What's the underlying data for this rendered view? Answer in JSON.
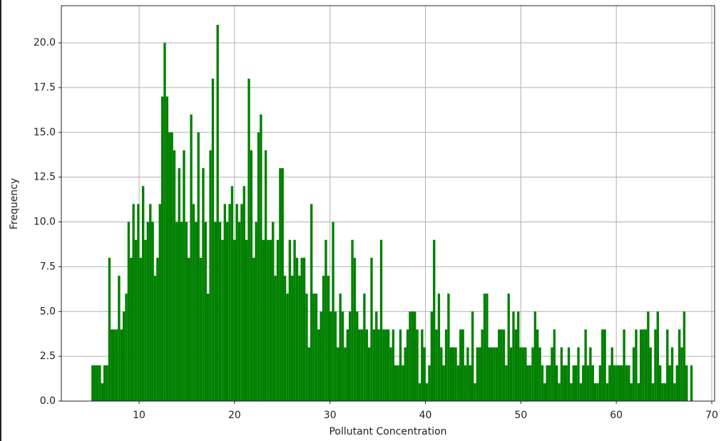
{
  "chart_data": {
    "type": "histogram",
    "x_label": "Pollutant Concentration",
    "y_label": "Frequency",
    "color": "#008000",
    "grid": true,
    "xlim": [
      1.85,
      70.3
    ],
    "ylim": [
      0,
      22.07
    ],
    "xticks": [
      10,
      20,
      30,
      40,
      50,
      60,
      70
    ],
    "yticks": [
      {
        "value": 0,
        "label": "0.0"
      },
      2.5,
      {
        "value": 5,
        "label": "5.0"
      },
      7.5,
      {
        "value": 10,
        "label": "10.0"
      },
      12.5,
      {
        "value": 15,
        "label": "15.0"
      },
      17.5,
      {
        "value": 20,
        "label": "20.0"
      }
    ],
    "bins": [
      5,
      5.252,
      5.504,
      5.756,
      6.008,
      6.26,
      6.512,
      6.764,
      7.016,
      7.268,
      7.52,
      7.772,
      8.024,
      8.276,
      8.528,
      8.78,
      9.032,
      9.284,
      9.536,
      9.788,
      10.04,
      10.292,
      10.544,
      10.796,
      11.048,
      11.3,
      11.552,
      11.804,
      12.056,
      12.308,
      12.56,
      12.812,
      13.064,
      13.316,
      13.568,
      13.82,
      14.072,
      14.324,
      14.576,
      14.828,
      15.08,
      15.332,
      15.584,
      15.836,
      16.088,
      16.34,
      16.592,
      16.844,
      17.096,
      17.348,
      17.6,
      17.852,
      18.104,
      18.356,
      18.608,
      18.86,
      19.112,
      19.364,
      19.616,
      19.868,
      20.12,
      20.372,
      20.624,
      20.876,
      21.128,
      21.38,
      21.632,
      21.884,
      22.136,
      22.388,
      22.64,
      22.892,
      23.144,
      23.396,
      23.648,
      23.9,
      24.152,
      24.404,
      24.656,
      24.908,
      25.16,
      25.412,
      25.664,
      25.916,
      26.168,
      26.42,
      26.672,
      26.924,
      27.176,
      27.428,
      27.68,
      27.932,
      28.184,
      28.436,
      28.688,
      28.94,
      29.192,
      29.444,
      29.696,
      29.948,
      30.2,
      30.452,
      30.704,
      30.956,
      31.208,
      31.46,
      31.712,
      31.964,
      32.216,
      32.468,
      32.72,
      32.972,
      33.224,
      33.476,
      33.728,
      33.98,
      34.232,
      34.484,
      34.736,
      34.988,
      35.24,
      35.492,
      35.744,
      35.996,
      36.248,
      36.5,
      36.752,
      37.004,
      37.256,
      37.508,
      37.76,
      38.012,
      38.264,
      38.516,
      38.768,
      39.02,
      39.272,
      39.524,
      39.776,
      40.028,
      40.28,
      40.532,
      40.784,
      41.036,
      41.288,
      41.54,
      41.792,
      42.044,
      42.296,
      42.548,
      42.8,
      43.052,
      43.304,
      43.556,
      43.808,
      44.06,
      44.312,
      44.564,
      44.816,
      45.068,
      45.32,
      45.572,
      45.824,
      46.076,
      46.328,
      46.58,
      46.832,
      47.084,
      47.336,
      47.588,
      47.84,
      48.092,
      48.344,
      48.596,
      48.848,
      49.1,
      49.352,
      49.604,
      49.856,
      50.108,
      50.36,
      50.612,
      50.864,
      51.116,
      51.368,
      51.62,
      51.872,
      52.124,
      52.376,
      52.628,
      52.88,
      53.132,
      53.384,
      53.636,
      53.888,
      54.14,
      54.392,
      54.644,
      54.896,
      55.148,
      55.4,
      55.652,
      55.904,
      56.156,
      56.408,
      56.66,
      56.912,
      57.164,
      57.416,
      57.668,
      57.92,
      58.172,
      58.424,
      58.676,
      58.928,
      59.18,
      59.432,
      59.684,
      59.936,
      60.188,
      60.44,
      60.692,
      60.944,
      61.196,
      61.448,
      61.7,
      61.952,
      62.204,
      62.456,
      62.708,
      62.96,
      63.212,
      63.464,
      63.716,
      63.968,
      64.22,
      64.472,
      64.724,
      64.976,
      65.228,
      65.48,
      65.732,
      65.984,
      66.236,
      66.488,
      66.74,
      66.992,
      67.244,
      67.496,
      67.748,
      68
    ],
    "values": [
      2,
      2,
      2,
      2,
      1,
      2,
      2,
      8,
      4,
      4,
      4,
      7,
      4,
      5,
      6,
      10,
      8,
      11,
      9,
      11,
      8,
      12,
      9,
      10,
      11,
      10,
      7,
      8,
      11,
      17,
      20,
      17,
      15,
      15,
      14,
      10,
      13,
      10,
      14,
      10,
      8,
      16,
      11,
      10,
      15,
      8,
      13,
      10,
      6,
      14,
      18,
      10,
      21,
      10,
      9,
      11,
      10,
      11,
      12,
      9,
      11,
      10,
      11,
      12,
      9,
      18,
      14,
      8,
      10,
      15,
      16,
      9,
      14,
      9,
      9,
      10,
      7,
      9,
      13,
      13,
      7,
      6,
      9,
      7,
      9,
      8,
      7,
      8,
      8,
      6,
      3,
      11,
      6,
      6,
      4,
      5,
      7,
      9,
      7,
      5,
      10,
      5,
      3,
      6,
      5,
      3,
      4,
      5,
      9,
      8,
      5,
      4,
      4,
      6,
      4,
      3,
      8,
      4,
      5,
      4,
      9,
      4,
      4,
      4,
      3,
      4,
      2,
      2,
      4,
      2,
      3,
      4,
      5,
      5,
      5,
      4,
      1,
      4,
      3,
      1,
      2,
      5,
      9,
      4,
      6,
      3,
      2,
      4,
      6,
      3,
      3,
      3,
      2,
      4,
      4,
      2,
      3,
      2,
      5,
      1,
      3,
      3,
      4,
      6,
      6,
      3,
      3,
      3,
      3,
      4,
      4,
      4,
      2,
      6,
      3,
      5,
      4,
      5,
      3,
      3,
      3,
      2,
      2,
      3,
      5,
      4,
      3,
      2,
      1,
      2,
      2,
      3,
      4,
      2,
      1,
      3,
      2,
      2,
      3,
      1,
      2,
      2,
      3,
      1,
      2,
      4,
      2,
      3,
      2,
      1,
      1,
      2,
      4,
      4,
      1,
      2,
      3,
      2,
      2,
      2,
      2,
      4,
      2,
      2,
      1,
      3,
      4,
      1,
      4,
      4,
      4,
      5,
      3,
      1,
      4,
      5,
      2,
      1,
      1,
      4,
      2,
      3,
      1,
      2,
      4,
      3,
      5,
      2,
      0,
      2
    ]
  }
}
